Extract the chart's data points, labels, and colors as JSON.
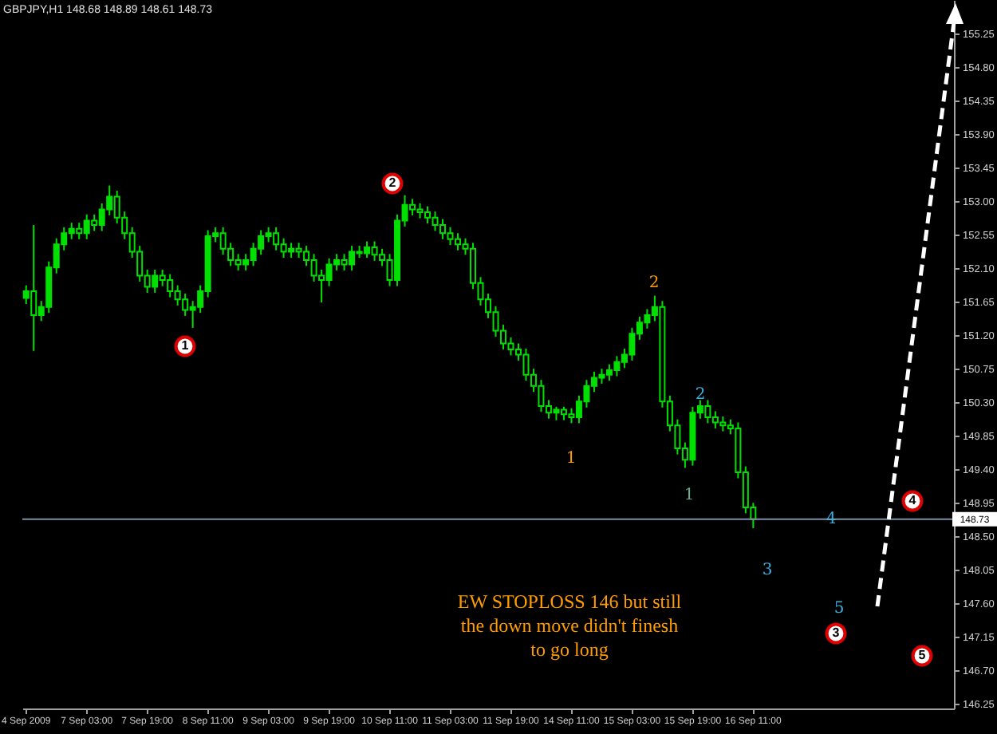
{
  "chart_data": {
    "type": "candlestick",
    "title": "GBPJPY,H1  148.68 148.89 148.61 148.73",
    "categories": [
      "4 Sep 2009",
      null,
      null,
      null,
      null,
      null,
      null,
      null,
      "7 Sep 03:00",
      null,
      null,
      null,
      null,
      null,
      null,
      null,
      "7 Sep 19:00",
      null,
      null,
      null,
      null,
      null,
      null,
      null,
      "8 Sep 11:00",
      null,
      null,
      null,
      null,
      null,
      null,
      null,
      "9 Sep 03:00",
      null,
      null,
      null,
      null,
      null,
      null,
      null,
      "9 Sep 19:00",
      null,
      null,
      null,
      null,
      null,
      null,
      null,
      "10 Sep 11:00",
      null,
      null,
      null,
      null,
      null,
      null,
      null,
      "11 Sep 03:00",
      null,
      null,
      null,
      null,
      null,
      null,
      null,
      "11 Sep 19:00",
      null,
      null,
      null,
      null,
      null,
      null,
      null,
      "14 Sep 11:00",
      null,
      null,
      null,
      null,
      null,
      null,
      null,
      "15 Sep 03:00",
      null,
      null,
      null,
      null,
      null,
      null,
      null,
      "15 Sep 19:00",
      null,
      null,
      null,
      null,
      null,
      null,
      null,
      "16 Sep 11:00",
      null,
      null,
      null,
      null,
      null,
      null,
      null,
      null,
      null,
      null,
      null,
      null,
      null,
      null,
      null,
      null,
      null,
      null,
      null,
      null,
      null,
      null,
      null,
      null,
      null,
      null
    ],
    "series": [
      {
        "color": "#00e000",
        "ohlc": [
          [
            151.7,
            151.87,
            151.62,
            151.79
          ],
          [
            151.79,
            152.68,
            150.99,
            151.47
          ],
          [
            151.47,
            151.66,
            151.39,
            151.58
          ],
          [
            151.58,
            152.19,
            151.5,
            152.11
          ],
          [
            152.11,
            152.5,
            152.03,
            152.42
          ],
          [
            152.42,
            152.65,
            152.34,
            152.57
          ],
          [
            152.57,
            152.71,
            152.49,
            152.63
          ],
          [
            152.63,
            152.71,
            152.49,
            152.57
          ],
          [
            152.57,
            152.82,
            152.49,
            152.74
          ],
          [
            152.74,
            152.82,
            152.6,
            152.68
          ],
          [
            152.68,
            152.97,
            152.6,
            152.89
          ],
          [
            152.89,
            153.21,
            152.81,
            153.06
          ],
          [
            153.06,
            153.14,
            152.7,
            152.78
          ],
          [
            152.78,
            152.86,
            152.49,
            152.57
          ],
          [
            152.57,
            152.65,
            152.24,
            152.32
          ],
          [
            152.32,
            152.4,
            151.92,
            152.0
          ],
          [
            152.0,
            152.08,
            151.77,
            151.85
          ],
          [
            151.85,
            152.08,
            151.77,
            152.0
          ],
          [
            152.0,
            152.08,
            151.86,
            151.94
          ],
          [
            151.94,
            152.02,
            151.71,
            151.79
          ],
          [
            151.79,
            151.87,
            151.6,
            151.68
          ],
          [
            151.68,
            151.76,
            151.46,
            151.54
          ],
          [
            151.54,
            151.66,
            151.3,
            151.58
          ],
          [
            151.58,
            151.87,
            151.5,
            151.79
          ],
          [
            151.79,
            152.61,
            151.71,
            152.53
          ],
          [
            152.53,
            152.65,
            152.45,
            152.57
          ],
          [
            152.57,
            152.65,
            152.28,
            152.36
          ],
          [
            152.36,
            152.44,
            152.13,
            152.21
          ],
          [
            152.21,
            152.29,
            152.07,
            152.15
          ],
          [
            152.15,
            152.29,
            152.07,
            152.21
          ],
          [
            152.21,
            152.44,
            152.13,
            152.36
          ],
          [
            152.36,
            152.61,
            152.28,
            152.53
          ],
          [
            152.53,
            152.65,
            152.45,
            152.57
          ],
          [
            152.57,
            152.65,
            152.34,
            152.42
          ],
          [
            152.42,
            152.5,
            152.24,
            152.32
          ],
          [
            152.32,
            152.44,
            152.24,
            152.36
          ],
          [
            152.36,
            152.44,
            152.24,
            152.32
          ],
          [
            152.32,
            152.4,
            152.13,
            152.21
          ],
          [
            152.21,
            152.29,
            151.92,
            152.0
          ],
          [
            152.0,
            152.08,
            151.64,
            151.94
          ],
          [
            151.94,
            152.23,
            151.86,
            152.15
          ],
          [
            152.15,
            152.29,
            152.07,
            152.21
          ],
          [
            152.21,
            152.29,
            152.07,
            152.15
          ],
          [
            152.15,
            152.4,
            152.07,
            152.32
          ],
          [
            152.32,
            152.4,
            152.24,
            152.3
          ],
          [
            152.3,
            152.46,
            152.24,
            152.38
          ],
          [
            152.38,
            152.46,
            152.2,
            152.28
          ],
          [
            152.28,
            152.36,
            152.13,
            152.21
          ],
          [
            152.21,
            152.29,
            151.86,
            151.94
          ],
          [
            151.94,
            152.82,
            151.86,
            152.74
          ],
          [
            152.74,
            153.08,
            152.66,
            152.95
          ],
          [
            152.95,
            153.03,
            152.81,
            152.89
          ],
          [
            152.89,
            152.97,
            152.77,
            152.85
          ],
          [
            152.85,
            152.93,
            152.7,
            152.78
          ],
          [
            152.78,
            152.86,
            152.6,
            152.68
          ],
          [
            152.68,
            152.76,
            152.49,
            152.57
          ],
          [
            152.57,
            152.65,
            152.41,
            152.49
          ],
          [
            152.49,
            152.57,
            152.34,
            152.42
          ],
          [
            152.42,
            152.5,
            152.28,
            152.36
          ],
          [
            152.36,
            152.44,
            151.82,
            151.9
          ],
          [
            151.9,
            151.98,
            151.6,
            151.68
          ],
          [
            151.68,
            151.76,
            151.43,
            151.51
          ],
          [
            151.51,
            151.59,
            151.18,
            151.26
          ],
          [
            151.26,
            151.34,
            151.01,
            151.09
          ],
          [
            151.09,
            151.17,
            150.93,
            151.01
          ],
          [
            151.01,
            151.09,
            150.86,
            150.94
          ],
          [
            150.94,
            151.02,
            150.59,
            150.67
          ],
          [
            150.67,
            150.75,
            150.44,
            150.52
          ],
          [
            150.52,
            150.6,
            150.17,
            150.25
          ],
          [
            150.25,
            150.33,
            150.08,
            150.16
          ],
          [
            150.16,
            150.24,
            150.06,
            150.2
          ],
          [
            150.2,
            150.24,
            150.06,
            150.14
          ],
          [
            150.14,
            150.22,
            150.02,
            150.1
          ],
          [
            150.1,
            150.39,
            150.02,
            150.31
          ],
          [
            150.31,
            150.6,
            150.23,
            150.52
          ],
          [
            150.52,
            150.71,
            150.44,
            150.63
          ],
          [
            150.63,
            150.75,
            150.55,
            150.67
          ],
          [
            150.67,
            150.81,
            150.59,
            150.73
          ],
          [
            150.73,
            150.92,
            150.65,
            150.84
          ],
          [
            150.84,
            151.02,
            150.76,
            150.94
          ],
          [
            150.94,
            151.3,
            150.86,
            151.22
          ],
          [
            151.22,
            151.45,
            151.14,
            151.37
          ],
          [
            151.37,
            151.55,
            151.29,
            151.47
          ],
          [
            151.47,
            151.73,
            151.39,
            151.58
          ],
          [
            151.58,
            151.66,
            150.23,
            150.31
          ],
          [
            150.31,
            150.39,
            149.91,
            149.99
          ],
          [
            149.99,
            150.07,
            149.6,
            149.68
          ],
          [
            149.68,
            149.76,
            149.42,
            149.53
          ],
          [
            149.53,
            150.24,
            149.45,
            150.16
          ],
          [
            150.16,
            150.33,
            150.08,
            150.25
          ],
          [
            150.25,
            150.33,
            150.02,
            150.1
          ],
          [
            150.1,
            150.18,
            149.95,
            150.03
          ],
          [
            150.03,
            150.11,
            149.91,
            149.99
          ],
          [
            149.99,
            150.07,
            149.87,
            149.95
          ],
          [
            149.95,
            150.03,
            149.28,
            149.36
          ],
          [
            149.36,
            149.44,
            148.81,
            148.89
          ],
          [
            148.89,
            148.95,
            148.61,
            148.73
          ],
          null,
          null,
          null,
          null,
          null,
          null,
          null,
          null,
          null,
          null,
          null,
          null,
          null,
          null,
          null,
          null,
          null,
          null,
          null,
          null,
          null,
          null,
          null,
          null,
          null,
          null
        ]
      }
    ],
    "ylim": [
      146.19,
      155.7
    ],
    "yticks": [
      146.25,
      {
        "value": 146.7,
        "label": "146.70"
      },
      147.15,
      {
        "value": 147.6,
        "label": "147.60"
      },
      148.05,
      {
        "value": 148.5,
        "label": "148.50"
      },
      148.95,
      {
        "value": 149.4,
        "label": "149.40"
      },
      149.85,
      {
        "value": 150.3,
        "label": "150.30"
      },
      150.75,
      {
        "value": 151.2,
        "label": "151.20"
      },
      151.65,
      {
        "value": 152.1,
        "label": "152.10"
      },
      152.55,
      {
        "value": 153.0,
        "label": "153.00"
      },
      153.45,
      {
        "value": 153.9,
        "label": "153.90"
      },
      154.35,
      {
        "value": 154.8,
        "label": "154.80"
      },
      155.25
    ],
    "ref_lines": [
      {
        "axis": "y",
        "value": 148.73,
        "label": "148.73",
        "color": "#7f8fa6"
      }
    ],
    "annotations": [
      "1",
      "2",
      "3",
      "4",
      "5",
      "1",
      "2",
      "1",
      "2",
      "3",
      "4",
      "5",
      "EW STOPLOSS 146 but still\nthe down move didn't finesh\nto go long"
    ]
  }
}
